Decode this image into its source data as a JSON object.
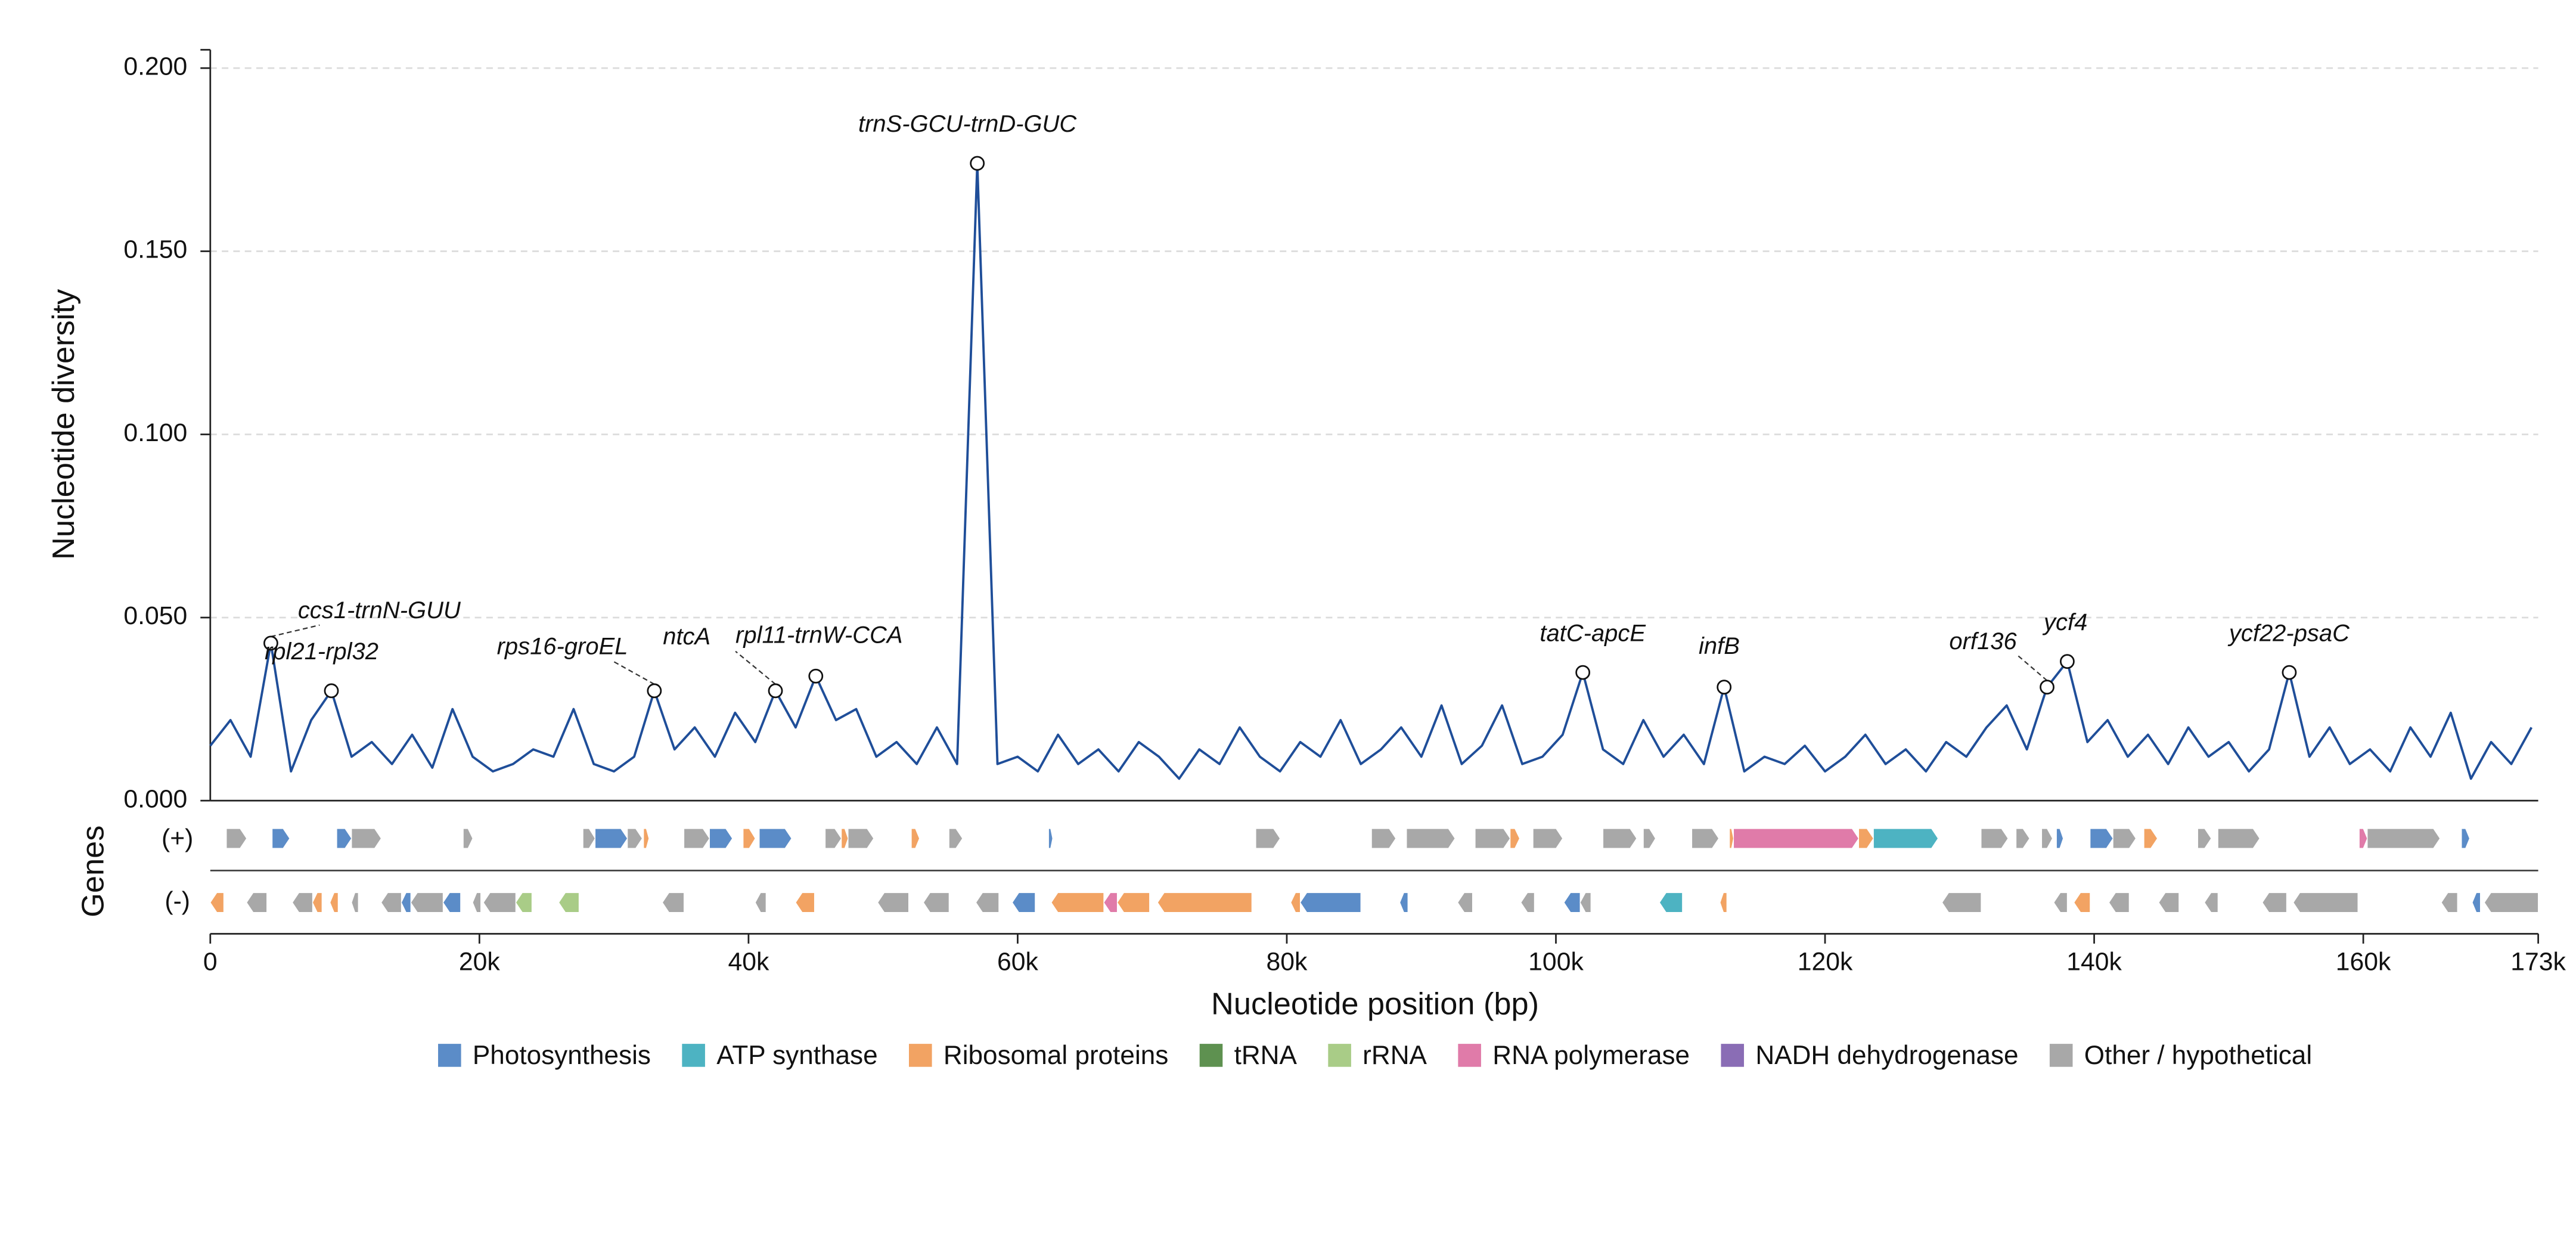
{
  "chart_data": {
    "type": "line",
    "x_label": "Nucleotide position (bp)",
    "y_label": "Nucleotide diversity",
    "gene_label": "Genes",
    "plus_label": "(+)",
    "minus_label": "(-)",
    "color": "#1f4e99",
    "grid": true,
    "xlim": [
      0,
      173000
    ],
    "ylim": [
      0,
      0.205
    ],
    "xticks": [
      {
        "value": 0,
        "label": "0"
      },
      {
        "value": 20000,
        "label": "20k"
      },
      {
        "value": 40000,
        "label": "40k"
      },
      {
        "value": 60000,
        "label": "60k"
      },
      {
        "value": 80000,
        "label": "80k"
      },
      {
        "value": 100000,
        "label": "100k"
      },
      {
        "value": 120000,
        "label": "120k"
      },
      {
        "value": 140000,
        "label": "140k"
      },
      {
        "value": 160000,
        "label": "160k"
      },
      {
        "value": 173000,
        "label": "173k"
      }
    ],
    "yticks": [
      {
        "value": 0,
        "label": "0.000"
      },
      {
        "value": 0.05,
        "label": "0.050"
      },
      {
        "value": 0.1,
        "label": "0.100"
      },
      {
        "value": 0.15,
        "label": "0.150"
      },
      {
        "value": 0.2,
        "label": "0.200"
      }
    ],
    "x": [
      0,
      1500,
      3000,
      4500,
      6000,
      7500,
      9000,
      10500,
      12000,
      13500,
      15000,
      16500,
      18000,
      19500,
      21000,
      22500,
      24000,
      25500,
      27000,
      28500,
      30000,
      31500,
      33000,
      34500,
      36000,
      37500,
      39000,
      40500,
      42000,
      43500,
      45000,
      46500,
      48000,
      49500,
      51000,
      52500,
      54000,
      55500,
      57000,
      58500,
      60000,
      61500,
      63000,
      64500,
      66000,
      67500,
      69000,
      70500,
      72000,
      73500,
      75000,
      76500,
      78000,
      79500,
      81000,
      82500,
      84000,
      85500,
      87000,
      88500,
      90000,
      91500,
      93000,
      94500,
      96000,
      97500,
      99000,
      100500,
      102000,
      103500,
      105000,
      106500,
      108000,
      109500,
      111000,
      112500,
      114000,
      115500,
      117000,
      118500,
      120000,
      121500,
      123000,
      124500,
      126000,
      127500,
      129000,
      130500,
      132000,
      133500,
      135000,
      136500,
      138000,
      139500,
      141000,
      142500,
      144000,
      145500,
      147000,
      148500,
      150000,
      151500,
      153000,
      154500,
      156000,
      157500,
      159000,
      160500,
      162000,
      163500,
      165000,
      166500,
      168000,
      169500,
      171000,
      172500
    ],
    "values": [
      0.015,
      0.022,
      0.012,
      0.043,
      0.008,
      0.022,
      0.03,
      0.012,
      0.016,
      0.01,
      0.018,
      0.009,
      0.025,
      0.012,
      0.008,
      0.01,
      0.014,
      0.012,
      0.025,
      0.01,
      0.008,
      0.012,
      0.03,
      0.014,
      0.02,
      0.012,
      0.024,
      0.016,
      0.03,
      0.02,
      0.034,
      0.022,
      0.025,
      0.012,
      0.016,
      0.01,
      0.02,
      0.01,
      0.174,
      0.01,
      0.012,
      0.008,
      0.018,
      0.01,
      0.014,
      0.008,
      0.016,
      0.012,
      0.006,
      0.014,
      0.01,
      0.02,
      0.012,
      0.008,
      0.016,
      0.012,
      0.022,
      0.01,
      0.014,
      0.02,
      0.012,
      0.026,
      0.01,
      0.015,
      0.026,
      0.01,
      0.012,
      0.018,
      0.035,
      0.014,
      0.01,
      0.022,
      0.012,
      0.018,
      0.01,
      0.031,
      0.008,
      0.012,
      0.01,
      0.015,
      0.008,
      0.012,
      0.018,
      0.01,
      0.014,
      0.008,
      0.016,
      0.012,
      0.02,
      0.026,
      0.014,
      0.031,
      0.038,
      0.016,
      0.022,
      0.012,
      0.018,
      0.01,
      0.02,
      0.012,
      0.016,
      0.008,
      0.014,
      0.035,
      0.012,
      0.02,
      0.01,
      0.014,
      0.008,
      0.02,
      0.012,
      0.024,
      0.006,
      0.016,
      0.01,
      0.02
    ],
    "annotations": [
      {
        "label": "ccs1-trnN-GUU",
        "x": 4500,
        "y": 0.043
      },
      {
        "label": "rpl21-rpl32",
        "x": 9000,
        "y": 0.03
      },
      {
        "label": "rps16-groEL",
        "x": 33000,
        "y": 0.03
      },
      {
        "label": "ntcA",
        "x": 42000,
        "y": 0.03
      },
      {
        "label": "rpl11-trnW-CCA",
        "x": 45000,
        "y": 0.034
      },
      {
        "label": "trnS-GCU-trnD-GUC",
        "x": 57000,
        "y": 0.174
      },
      {
        "label": "tatC-apcE",
        "x": 102000,
        "y": 0.035
      },
      {
        "label": "infB",
        "x": 112500,
        "y": 0.031
      },
      {
        "label": "orf136",
        "x": 136500,
        "y": 0.031
      },
      {
        "label": "ycf4",
        "x": 138000,
        "y": 0.038
      },
      {
        "label": "ycf22-psaC",
        "x": 154500,
        "y": 0.035
      }
    ],
    "legend": [
      {
        "name": "Photosynthesis",
        "color": "#5b8cc8"
      },
      {
        "name": "ATP synthase",
        "color": "#4db3c2"
      },
      {
        "name": "Ribosomal proteins",
        "color": "#f2a363"
      },
      {
        "name": "tRNA",
        "color": "#5e9150"
      },
      {
        "name": "rRNA",
        "color": "#a9cc87"
      },
      {
        "name": "RNA polymerase",
        "color": "#e07ba9"
      },
      {
        "name": "NADH dehydrogenase",
        "color": "#8a6db5"
      },
      {
        "name": "Other / hypothetical",
        "color": "#a8a8a8"
      }
    ],
    "genes_plus": [
      [
        1200,
        2700,
        "Other / hypothetical"
      ],
      [
        4600,
        5900,
        "Photosynthesis"
      ],
      [
        9400,
        10500,
        "Photosynthesis"
      ],
      [
        10500,
        12700,
        "Other / hypothetical"
      ],
      [
        18800,
        19500,
        "Other / hypothetical"
      ],
      [
        27700,
        28600,
        "Other / hypothetical"
      ],
      [
        28600,
        31000,
        "Photosynthesis"
      ],
      [
        31000,
        32100,
        "Other / hypothetical"
      ],
      [
        32200,
        32600,
        "Ribosomal proteins"
      ],
      [
        35200,
        37100,
        "Other / hypothetical"
      ],
      [
        37100,
        38800,
        "Photosynthesis"
      ],
      [
        39600,
        40500,
        "Ribosomal proteins"
      ],
      [
        40800,
        43200,
        "Photosynthesis"
      ],
      [
        45700,
        46900,
        "Other / hypothetical"
      ],
      [
        46900,
        47400,
        "Ribosomal proteins"
      ],
      [
        47400,
        49300,
        "Other / hypothetical"
      ],
      [
        52100,
        52700,
        "Ribosomal proteins"
      ],
      [
        54900,
        55900,
        "Other / hypothetical"
      ],
      [
        62300,
        62600,
        "Photosynthesis"
      ],
      [
        77700,
        79500,
        "Other / hypothetical"
      ],
      [
        86300,
        88100,
        "Other / hypothetical"
      ],
      [
        88900,
        92500,
        "Other / hypothetical"
      ],
      [
        94000,
        96600,
        "Other / hypothetical"
      ],
      [
        96600,
        97300,
        "Ribosomal proteins"
      ],
      [
        98300,
        100500,
        "Other / hypothetical"
      ],
      [
        103500,
        106000,
        "Other / hypothetical"
      ],
      [
        106500,
        107400,
        "Other / hypothetical"
      ],
      [
        110100,
        112100,
        "Other / hypothetical"
      ],
      [
        112900,
        113200,
        "Ribosomal proteins"
      ],
      [
        113200,
        122500,
        "RNA polymerase"
      ],
      [
        122500,
        123600,
        "Ribosomal proteins"
      ],
      [
        123600,
        128400,
        "ATP synthase"
      ],
      [
        131600,
        133600,
        "Other / hypothetical"
      ],
      [
        134200,
        135200,
        "Other / hypothetical"
      ],
      [
        136100,
        136900,
        "Other / hypothetical"
      ],
      [
        137200,
        137700,
        "Photosynthesis"
      ],
      [
        139700,
        141400,
        "Photosynthesis"
      ],
      [
        141400,
        143100,
        "Other / hypothetical"
      ],
      [
        143700,
        144700,
        "Ribosomal proteins"
      ],
      [
        147700,
        148700,
        "Other / hypothetical"
      ],
      [
        149200,
        152300,
        "Other / hypothetical"
      ],
      [
        159700,
        160300,
        "RNA polymerase"
      ],
      [
        160300,
        165700,
        "Other / hypothetical"
      ],
      [
        167300,
        167900,
        "Photosynthesis"
      ]
    ],
    "genes_minus": [
      [
        0,
        1000,
        "Ribosomal proteins"
      ],
      [
        2700,
        4200,
        "Other / hypothetical"
      ],
      [
        6100,
        7600,
        "Other / hypothetical"
      ],
      [
        7600,
        8300,
        "Ribosomal proteins"
      ],
      [
        8900,
        9500,
        "Ribosomal proteins"
      ],
      [
        10500,
        11000,
        "Other / hypothetical"
      ],
      [
        12700,
        14200,
        "Other / hypothetical"
      ],
      [
        14200,
        14900,
        "Photosynthesis"
      ],
      [
        14900,
        17300,
        "Other / hypothetical"
      ],
      [
        17300,
        18600,
        "Photosynthesis"
      ],
      [
        19500,
        20100,
        "Other / hypothetical"
      ],
      [
        20300,
        22700,
        "Other / hypothetical"
      ],
      [
        22700,
        23900,
        "rRNA"
      ],
      [
        25900,
        27400,
        "rRNA"
      ],
      [
        33600,
        35200,
        "Other / hypothetical"
      ],
      [
        40500,
        41300,
        "Other / hypothetical"
      ],
      [
        43500,
        44900,
        "Ribosomal proteins"
      ],
      [
        49600,
        51900,
        "Other / hypothetical"
      ],
      [
        53000,
        54900,
        "Other / hypothetical"
      ],
      [
        56900,
        58600,
        "Other / hypothetical"
      ],
      [
        59600,
        61300,
        "Photosynthesis"
      ],
      [
        62500,
        66400,
        "Ribosomal proteins"
      ],
      [
        66400,
        67400,
        "RNA polymerase"
      ],
      [
        67400,
        69800,
        "Ribosomal proteins"
      ],
      [
        70400,
        77400,
        "Ribosomal proteins"
      ],
      [
        80300,
        81000,
        "Ribosomal proteins"
      ],
      [
        81000,
        85500,
        "Photosynthesis"
      ],
      [
        88400,
        89000,
        "Photosynthesis"
      ],
      [
        92700,
        93800,
        "Other / hypothetical"
      ],
      [
        97400,
        98400,
        "Other / hypothetical"
      ],
      [
        100600,
        101800,
        "Photosynthesis"
      ],
      [
        101800,
        102600,
        "Other / hypothetical"
      ],
      [
        107700,
        109400,
        "ATP synthase"
      ],
      [
        112200,
        112700,
        "Ribosomal proteins"
      ],
      [
        128700,
        131600,
        "Other / hypothetical"
      ],
      [
        137000,
        138000,
        "Other / hypothetical"
      ],
      [
        138500,
        139700,
        "Ribosomal proteins"
      ],
      [
        141100,
        142600,
        "Other / hypothetical"
      ],
      [
        144800,
        146300,
        "Other / hypothetical"
      ],
      [
        148200,
        149200,
        "Other / hypothetical"
      ],
      [
        152500,
        154300,
        "Other / hypothetical"
      ],
      [
        154800,
        159600,
        "Other / hypothetical"
      ],
      [
        165800,
        167000,
        "Other / hypothetical"
      ],
      [
        168100,
        168700,
        "Photosynthesis"
      ],
      [
        169000,
        173000,
        "Other / hypothetical"
      ]
    ]
  }
}
